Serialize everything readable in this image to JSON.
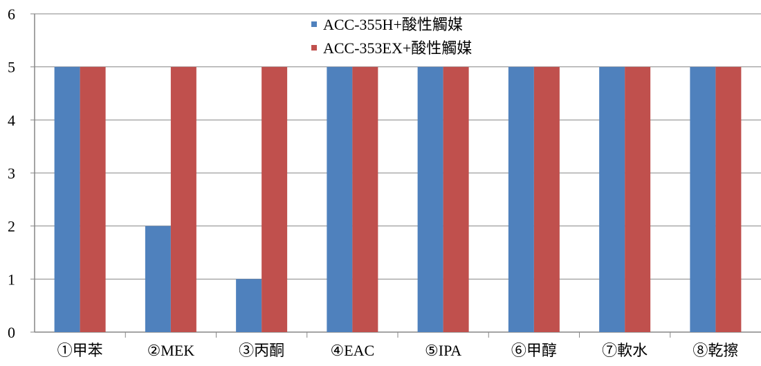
{
  "chart_data": {
    "type": "bar",
    "categories": [
      "①甲苯",
      "②MEK",
      "③丙酮",
      "④EAC",
      "⑤IPA",
      "⑥甲醇",
      "⑦軟水",
      "⑧乾擦"
    ],
    "series": [
      {
        "name": "ACC-355H+酸性觸媒",
        "color": "#4f81bd",
        "values": [
          5,
          2,
          1,
          5,
          5,
          5,
          5,
          5
        ]
      },
      {
        "name": "ACC-353EX+酸性觸媒",
        "color": "#c0504d",
        "values": [
          5,
          5,
          5,
          5,
          5,
          5,
          5,
          5
        ]
      }
    ],
    "title": "",
    "xlabel": "",
    "ylabel": "",
    "ylim": [
      0,
      6
    ],
    "yticks": [
      0,
      1,
      2,
      3,
      4,
      5,
      6
    ],
    "grid": true,
    "legend": "top-center"
  }
}
